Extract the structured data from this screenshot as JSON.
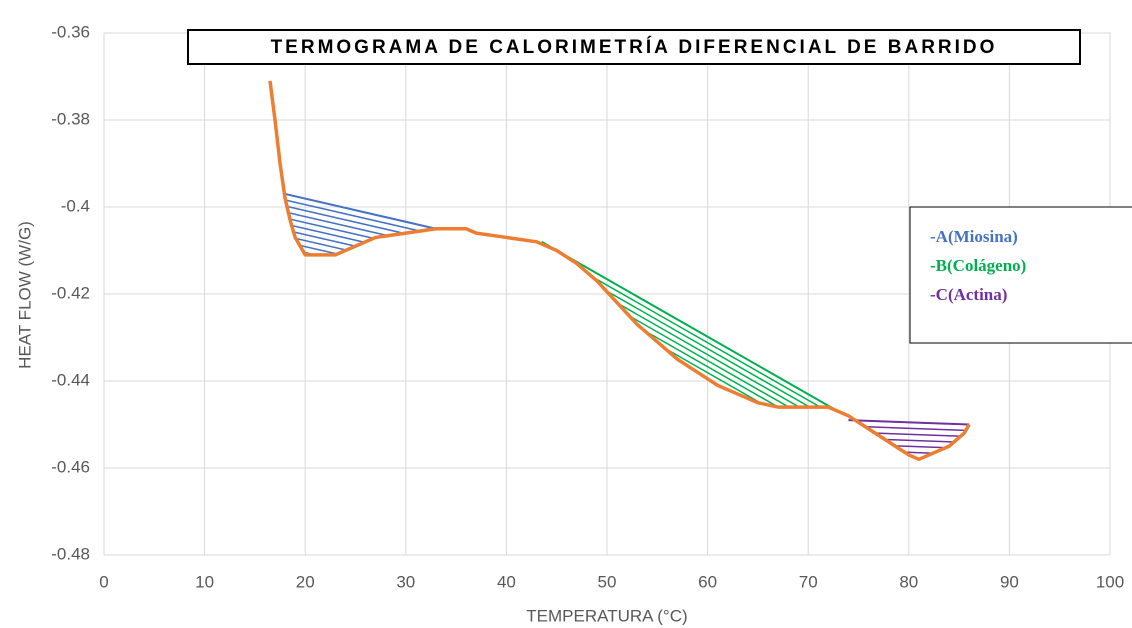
{
  "chart_data": {
    "type": "line",
    "title": "TERMOGRAMA DE CALORIMETRÍA DIFERENCIAL DE BARRIDO",
    "x_label": "TEMPERATURA (°C)",
    "y_label": "HEAT FLOW (W/G)",
    "xlim": [
      0,
      100
    ],
    "xticks": [
      0,
      10,
      20,
      30,
      40,
      50,
      60,
      70,
      80,
      90,
      100
    ],
    "ylim": [
      -0.48,
      -0.36
    ],
    "yticks": [
      -0.48,
      -0.46,
      -0.44,
      -0.42,
      -0.4,
      -0.38,
      -0.36
    ],
    "grid": true,
    "x": [
      16.5,
      17,
      17.5,
      18,
      18.5,
      19,
      19.5,
      20,
      23,
      25,
      27,
      30,
      33,
      36,
      37,
      40,
      43,
      45,
      47,
      49,
      51,
      53,
      55,
      57,
      59,
      61,
      63,
      65,
      67,
      72,
      74,
      76,
      78,
      80,
      81,
      82,
      84,
      85.5,
      86
    ],
    "series": [
      {
        "color": "#ed7d31",
        "values": [
          -0.371,
          -0.38,
          -0.39,
          -0.398,
          -0.403,
          -0.407,
          -0.409,
          -0.411,
          -0.411,
          -0.409,
          -0.407,
          -0.406,
          -0.405,
          -0.405,
          -0.406,
          -0.407,
          -0.408,
          -0.41,
          -0.413,
          -0.417,
          -0.422,
          -0.427,
          -0.431,
          -0.435,
          -0.438,
          -0.441,
          -0.443,
          -0.445,
          -0.446,
          -0.446,
          -0.448,
          -0.451,
          -0.454,
          -0.457,
          -0.458,
          -0.457,
          -0.455,
          -0.452,
          -0.45
        ]
      }
    ],
    "regions": [
      {
        "name": "-A(Miosina)",
        "color": "#4472c4",
        "x": [
          18,
          33
        ],
        "y": [
          -0.397,
          -0.405
        ]
      },
      {
        "name": "-B(Colágeno)",
        "color": "#00b050",
        "x": [
          43.5,
          73
        ],
        "y": [
          -0.408,
          -0.447
        ]
      },
      {
        "name": "-C(Actina)",
        "color": "#7030a0",
        "x": [
          74,
          86
        ],
        "y": [
          -0.449,
          -0.45
        ]
      }
    ]
  }
}
